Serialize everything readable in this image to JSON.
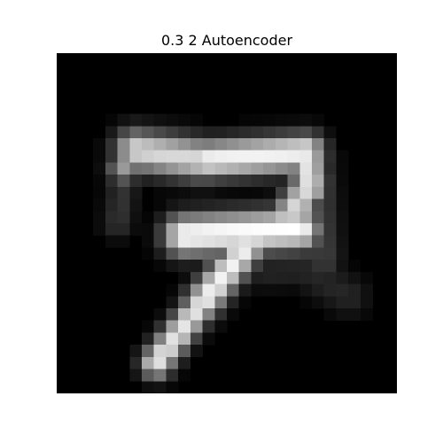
{
  "title": "0.3 2 Autoencoder",
  "image": {
    "description_icon": "reconstructed-digit-image",
    "grid_size": 28,
    "background": "#000000",
    "foreground": "#ffffff"
  }
}
